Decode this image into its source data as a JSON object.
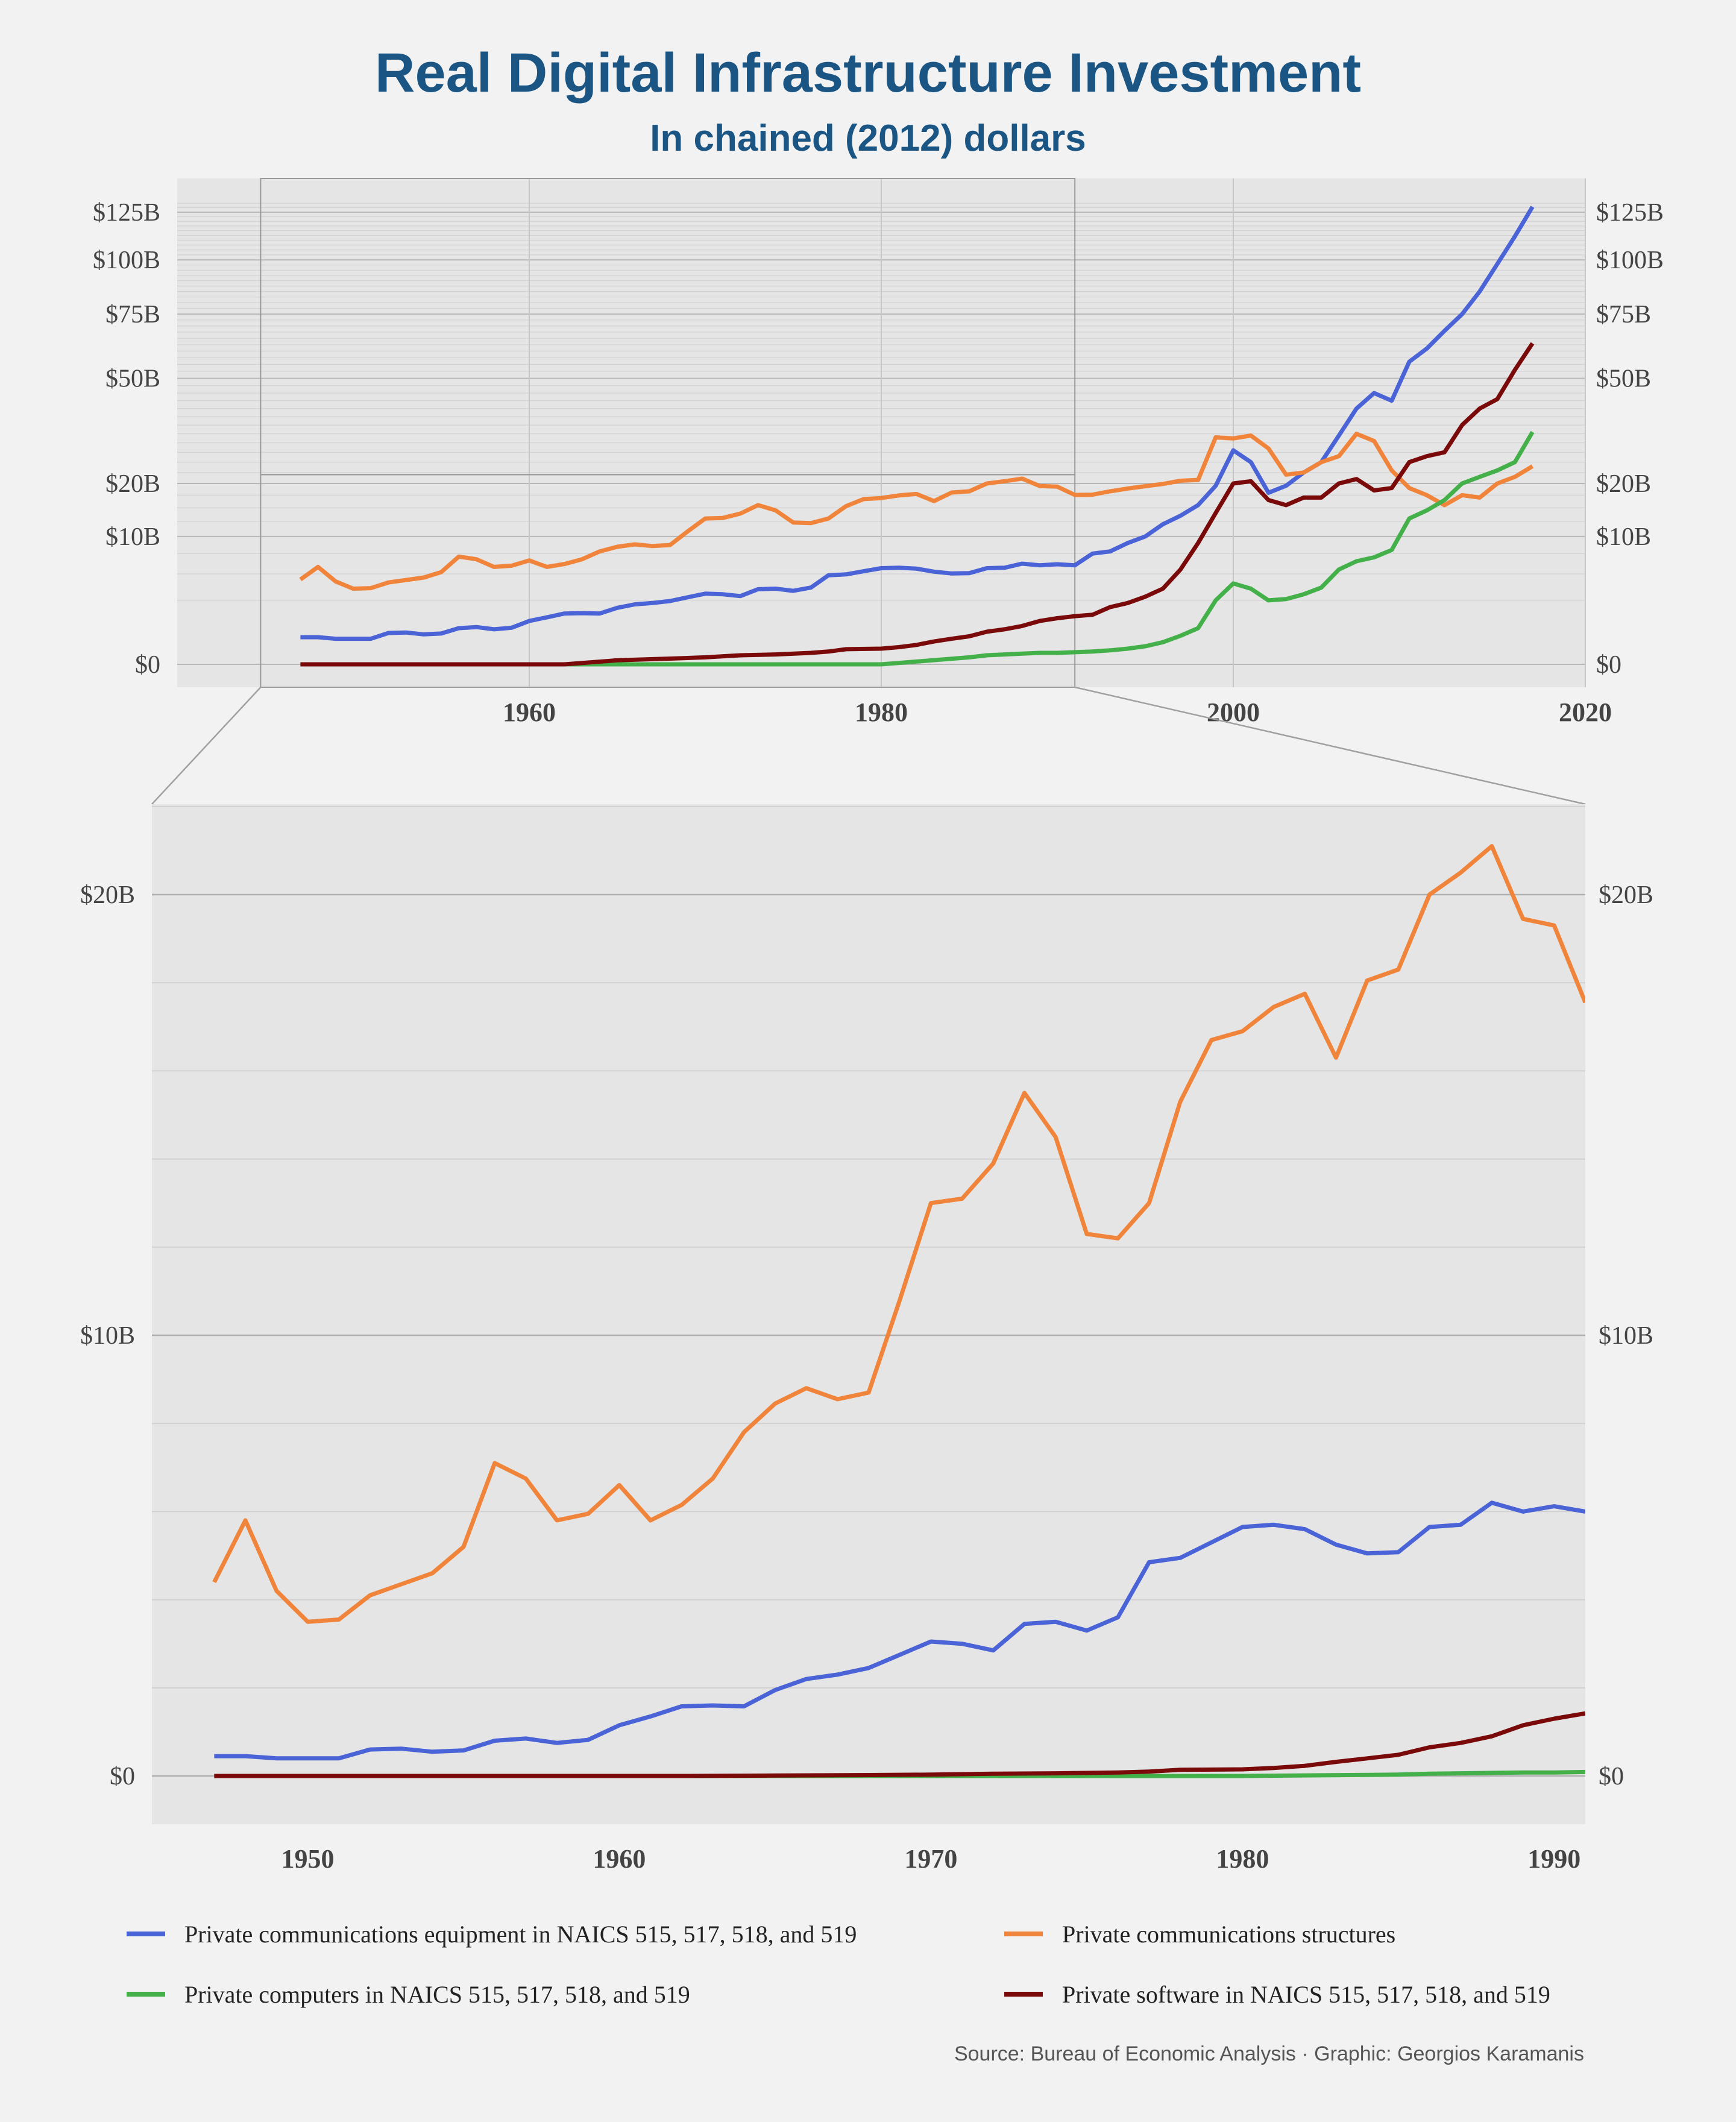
{
  "title": "Real Digital Infrastructure Investment",
  "subtitle": "In chained (2012) dollars",
  "caption": "Source: Bureau of Economic Analysis · Graphic: Georgios Karamanis",
  "colors": {
    "equipment": "#4a63d6",
    "structures": "#f0843a",
    "computers": "#43b04a",
    "software": "#7a0a0a",
    "background": "#f2f2f2",
    "panel": "#e5e5e5",
    "title": "#1a5583"
  },
  "legend": [
    {
      "key": "equipment",
      "label": "Private communications equipment in NAICS 515, 517, 518, and 519"
    },
    {
      "key": "structures",
      "label": "Private communications structures"
    },
    {
      "key": "computers",
      "label": "Private computers in NAICS 515, 517, 518, and 519"
    },
    {
      "key": "software",
      "label": "Private software in NAICS 515, 517, 518, and 519"
    }
  ],
  "chart_data": [
    {
      "type": "line",
      "panel": "overview",
      "title": "",
      "xlabel": "",
      "ylabel": "",
      "xlim": [
        1940,
        2020
      ],
      "ylim": [
        0,
        130
      ],
      "y_scale": "sqrt",
      "y_unit": "billions of chained 2012 dollars",
      "x_ticks": [
        "1960",
        "1980",
        "2000",
        "2020"
      ],
      "y_ticks": [
        "$0",
        "$10B",
        "$20B",
        "$50B",
        "$75B",
        "$100B",
        "$125B"
      ],
      "zoom_region": {
        "x": [
          1947,
          1991
        ],
        "y": [
          0,
          22
        ]
      },
      "grid": true,
      "legend_position": "bottom",
      "series": [
        {
          "key": "equipment",
          "name": "Private communications equipment in NAICS 515, 517, 518, and 519",
          "x": [
            1947,
            1948,
            1949,
            1950,
            1951,
            1952,
            1953,
            1954,
            1955,
            1956,
            1957,
            1958,
            1959,
            1960,
            1961,
            1962,
            1963,
            1964,
            1965,
            1966,
            1967,
            1968,
            1969,
            1970,
            1971,
            1972,
            1973,
            1974,
            1975,
            1976,
            1977,
            1978,
            1979,
            1980,
            1981,
            1982,
            1983,
            1984,
            1985,
            1986,
            1987,
            1988,
            1989,
            1990,
            1991,
            1992,
            1993,
            1994,
            1995,
            1996,
            1997,
            1998,
            1999,
            2000,
            2001,
            2002,
            2003,
            2004,
            2005,
            2006,
            2007,
            2008,
            2009,
            2010,
            2011,
            2012,
            2013,
            2014,
            2015,
            2016,
            2017
          ],
          "y": [
            0.45,
            0.45,
            0.4,
            0.4,
            0.4,
            0.6,
            0.62,
            0.55,
            0.58,
            0.8,
            0.85,
            0.75,
            0.82,
            1.15,
            1.35,
            1.58,
            1.6,
            1.58,
            1.95,
            2.2,
            2.3,
            2.45,
            2.75,
            3.05,
            3.0,
            2.85,
            3.45,
            3.5,
            3.3,
            3.6,
            4.85,
            4.95,
            5.3,
            5.65,
            5.7,
            5.6,
            5.25,
            5.05,
            5.08,
            5.65,
            5.7,
            6.2,
            6.0,
            6.12,
            6.0,
            7.5,
            7.8,
            9.0,
            10.0,
            12.0,
            13.5,
            15.5,
            19.5,
            28.0,
            25.0,
            18.0,
            19.5,
            22.5,
            25.0,
            32.0,
            40.0,
            45.0,
            42.5,
            56.0,
            61.0,
            68.0,
            75.0,
            85.0,
            98.0,
            112.0,
            128.0
          ]
        },
        {
          "key": "structures",
          "name": "Private communications structures",
          "x": [
            1947,
            1948,
            1949,
            1950,
            1951,
            1952,
            1953,
            1954,
            1955,
            1956,
            1957,
            1958,
            1959,
            1960,
            1961,
            1962,
            1963,
            1964,
            1965,
            1966,
            1967,
            1968,
            1969,
            1970,
            1971,
            1972,
            1973,
            1974,
            1975,
            1976,
            1977,
            1978,
            1979,
            1980,
            1981,
            1982,
            1983,
            1984,
            1985,
            1986,
            1987,
            1988,
            1989,
            1990,
            1991,
            1992,
            1993,
            1994,
            1995,
            1996,
            1997,
            1998,
            1999,
            2000,
            2001,
            2002,
            2003,
            2004,
            2005,
            2006,
            2007,
            2008,
            2009,
            2010,
            2011,
            2012,
            2013,
            2014,
            2015,
            2016,
            2017
          ],
          "y": [
            4.4,
            5.8,
            4.2,
            3.5,
            3.55,
            4.1,
            4.35,
            4.6,
            5.2,
            7.1,
            6.75,
            5.8,
            5.95,
            6.6,
            5.8,
            6.15,
            6.75,
            7.8,
            8.45,
            8.8,
            8.55,
            8.7,
            10.8,
            13.0,
            13.1,
            13.9,
            15.5,
            14.5,
            12.3,
            12.2,
            13.0,
            15.3,
            16.7,
            16.9,
            17.45,
            17.75,
            16.3,
            18.05,
            18.3,
            20.0,
            20.5,
            21.1,
            19.45,
            19.3,
            17.55,
            17.6,
            18.3,
            18.9,
            19.4,
            19.9,
            20.6,
            20.8,
            31.5,
            31.2,
            32.0,
            28.5,
            22.0,
            22.5,
            25.0,
            26.5,
            32.5,
            30.5,
            23.0,
            19.0,
            17.5,
            15.5,
            17.5,
            17.0,
            20.0,
            21.5,
            24.0
          ]
        },
        {
          "key": "computers",
          "name": "Private computers in NAICS 515, 517, 518, and 519",
          "x": [
            1947,
            1950,
            1955,
            1960,
            1965,
            1970,
            1975,
            1980,
            1985,
            1986,
            1987,
            1988,
            1989,
            1990,
            1991,
            1992,
            1993,
            1994,
            1995,
            1996,
            1997,
            1998,
            1999,
            2000,
            2001,
            2002,
            2003,
            2004,
            2005,
            2006,
            2007,
            2008,
            2009,
            2010,
            2011,
            2012,
            2013,
            2014,
            2015,
            2016,
            2017
          ],
          "y": [
            0,
            0,
            0,
            0,
            0,
            0,
            0,
            0,
            0.03,
            0.05,
            0.06,
            0.07,
            0.08,
            0.08,
            0.09,
            0.1,
            0.12,
            0.15,
            0.2,
            0.3,
            0.5,
            0.8,
            2.5,
            4.0,
            3.5,
            2.5,
            2.6,
            3.0,
            3.6,
            5.5,
            6.5,
            7.0,
            8.0,
            13.0,
            14.5,
            16.5,
            20.0,
            21.5,
            23.0,
            25.0,
            33.0
          ]
        },
        {
          "key": "software",
          "name": "Private software in NAICS 515, 517, 518, and 519",
          "x": [
            1947,
            1950,
            1955,
            1960,
            1962,
            1965,
            1968,
            1970,
            1972,
            1974,
            1976,
            1977,
            1978,
            1980,
            1981,
            1982,
            1983,
            1984,
            1985,
            1986,
            1987,
            1988,
            1989,
            1990,
            1991,
            1992,
            1993,
            1994,
            1995,
            1996,
            1997,
            1998,
            1999,
            2000,
            2001,
            2002,
            2003,
            2004,
            2005,
            2006,
            2007,
            2008,
            2009,
            2010,
            2011,
            2012,
            2013,
            2014,
            2015,
            2016,
            2017
          ],
          "y": [
            0,
            0,
            0,
            0,
            0,
            0.01,
            0.02,
            0.03,
            0.05,
            0.06,
            0.08,
            0.1,
            0.14,
            0.15,
            0.18,
            0.23,
            0.32,
            0.4,
            0.48,
            0.65,
            0.75,
            0.9,
            1.15,
            1.3,
            1.42,
            1.5,
            2.0,
            2.3,
            2.8,
            3.5,
            5.5,
            9.0,
            14.0,
            20.0,
            20.5,
            16.5,
            15.5,
            17.0,
            17.0,
            20.0,
            21.0,
            18.5,
            19.0,
            25.0,
            26.5,
            27.5,
            35.0,
            40.0,
            43.0,
            53.0,
            63.0
          ]
        }
      ]
    },
    {
      "type": "line",
      "panel": "zoom",
      "title": "",
      "xlabel": "",
      "ylabel": "",
      "xlim": [
        1945,
        1991
      ],
      "ylim": [
        -1,
        22
      ],
      "y_unit": "billions of chained 2012 dollars",
      "x_ticks": [
        "1950",
        "1960",
        "1970",
        "1980",
        "1990"
      ],
      "y_ticks": [
        "$0",
        "$10B",
        "$20B"
      ],
      "grid": true,
      "series_ref": "same as overview, restricted to 1947–1991"
    }
  ]
}
